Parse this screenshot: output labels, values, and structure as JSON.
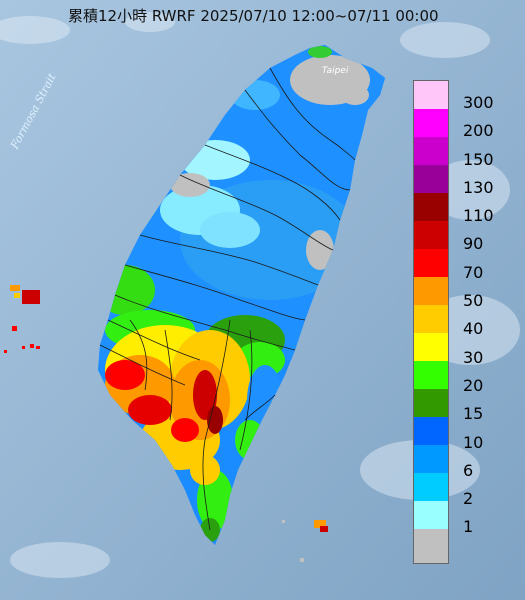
{
  "title": "累積12小時 RWRF 2025/07/10 12:00~07/11 00:00",
  "strait_label": "Formosa Strait",
  "city_label": "Taipei",
  "legend": {
    "colors": [
      "#ffc6fa",
      "#ff00ff",
      "#cc00cc",
      "#990099",
      "#990000",
      "#cc0000",
      "#ff0000",
      "#ff9900",
      "#ffcc00",
      "#ffff00",
      "#33ff00",
      "#339900",
      "#0066ff",
      "#0099ff",
      "#00ccff",
      "#99ffff",
      "#c0c0c0"
    ],
    "labels": [
      "300",
      "200",
      "150",
      "130",
      "110",
      "90",
      "70",
      "50",
      "40",
      "30",
      "20",
      "15",
      "10",
      "6",
      "2",
      "1"
    ]
  }
}
